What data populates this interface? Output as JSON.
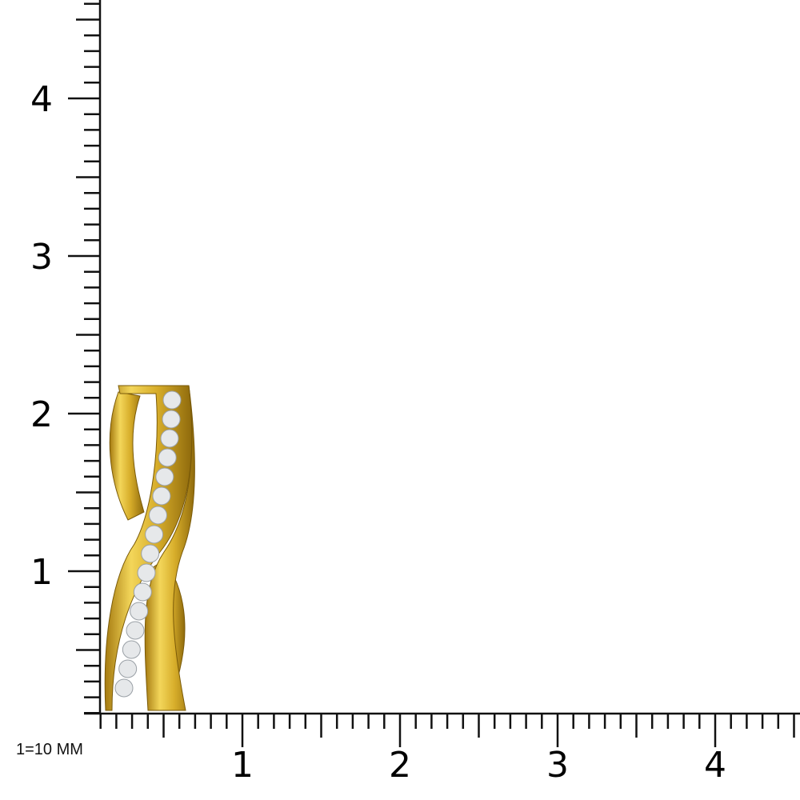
{
  "scale_note": "1=10 MM",
  "ruler": {
    "unit": "1=10 MM",
    "minor_divisions_per_unit": 10,
    "x_labels": [
      "1",
      "2",
      "3",
      "4"
    ],
    "y_labels": [
      "1",
      "2",
      "3",
      "4"
    ],
    "line_color": "#111111"
  },
  "product": {
    "type": "pendant",
    "metal_color": "#d9b530",
    "stone_color": "#e6e8ea",
    "stone_count": 16
  }
}
